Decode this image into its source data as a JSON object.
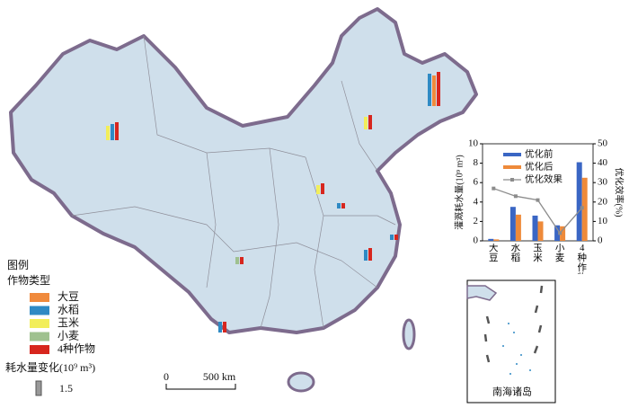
{
  "legend": {
    "title": "图例",
    "crop_type": "作物类型",
    "crops": [
      "大豆",
      "水稻",
      "玉米",
      "小麦",
      "4种作物"
    ],
    "crop_colors": [
      "#f08a3c",
      "#2f8ac4",
      "#f2ee5a",
      "#9fc18f",
      "#d7261e"
    ],
    "size_title": "耗水量变化(10⁹ m³)",
    "size_example": "1.5"
  },
  "scale_bar": {
    "start": "0",
    "end": "500 km"
  },
  "inset_label": "南海诸岛",
  "chart_data": {
    "type": "bar",
    "y_label": "灌溉耗水量(10⁹ m³)",
    "y2_label": "优化效率(%)",
    "categories": [
      "大豆",
      "水稻",
      "玉米",
      "小麦",
      "4种作物"
    ],
    "series": [
      {
        "name": "优化前",
        "color": "#3a66c4",
        "values": [
          0.2,
          3.5,
          2.6,
          1.6,
          8.1
        ]
      },
      {
        "name": "优化后",
        "color": "#ee8a3a",
        "values": [
          0.15,
          2.7,
          2.0,
          1.5,
          6.5
        ]
      },
      {
        "name": "优化效果",
        "color": "#8c8c8c",
        "axis": "y2",
        "values": [
          27,
          23,
          21,
          4,
          17
        ]
      }
    ],
    "ylim": [
      0,
      10
    ],
    "yticks": [
      0,
      2,
      4,
      6,
      8,
      10
    ],
    "y2lim": [
      0,
      50
    ],
    "y2ticks": [
      0,
      10,
      20,
      30,
      40,
      50
    ]
  }
}
